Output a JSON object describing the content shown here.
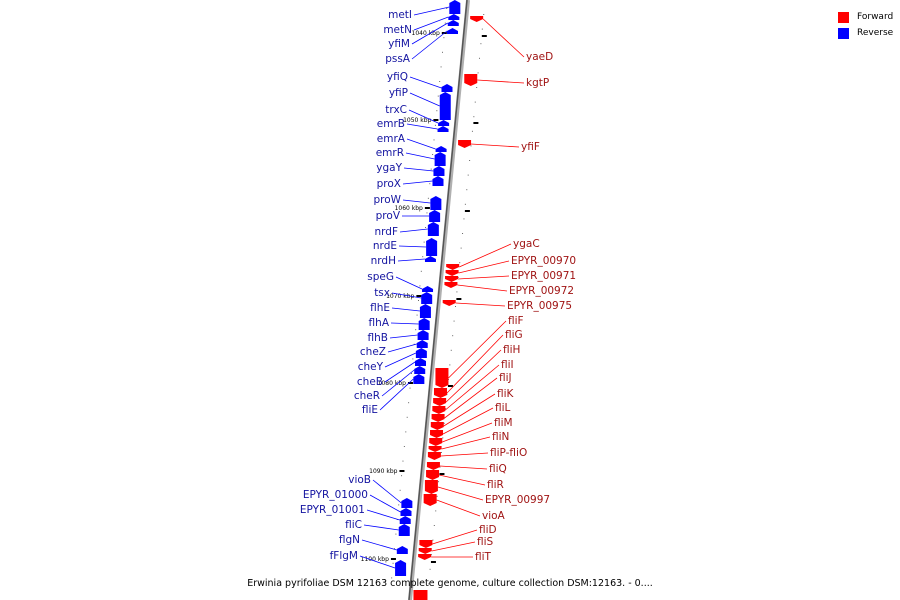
{
  "legend": {
    "forward_label": "Forward",
    "reverse_label": "Reverse",
    "forward_color": "#ff0000",
    "reverse_color": "#0000ff"
  },
  "caption": "Erwinia pyrifoliae DSM 12163 complete genome, culture collection DSM:12163. - 0....",
  "ticks": [
    {
      "label": "1040 kbp"
    },
    {
      "label": "1050 kbp"
    },
    {
      "label": "1060 kbp"
    },
    {
      "label": "1070 kbp"
    },
    {
      "label": "1080 kbp"
    },
    {
      "label": "1090 kbp"
    },
    {
      "label": "1100 kbp"
    }
  ],
  "reverse_genes": [
    "metI",
    "metN",
    "yfiM",
    "pssA",
    "yfiQ",
    "yfiP",
    "trxC",
    "emrB",
    "emrA",
    "emrR",
    "ygaY",
    "proX",
    "proW",
    "proV",
    "nrdF",
    "nrdE",
    "nrdH",
    "speG",
    "tsx",
    "flhE",
    "flhA",
    "flhB",
    "cheZ",
    "cheY",
    "cheB",
    "cheR",
    "fliE",
    "vioB",
    "EPYR_01000",
    "EPYR_01001",
    "fliC",
    "flgN",
    "fFlgM"
  ],
  "forward_genes": [
    "yaeD",
    "kgtP",
    "yfiF",
    "ygaC",
    "EPYR_00970",
    "EPYR_00971",
    "EPYR_00972",
    "EPYR_00975",
    "fliF",
    "fliG",
    "fliH",
    "fliI",
    "fliJ",
    "fliK",
    "fliL",
    "fliM",
    "fliN",
    "fliP-fliO",
    "fliQ",
    "fliR",
    "EPYR_00997",
    "vioA",
    "fliD",
    "fliS",
    "fliT"
  ]
}
